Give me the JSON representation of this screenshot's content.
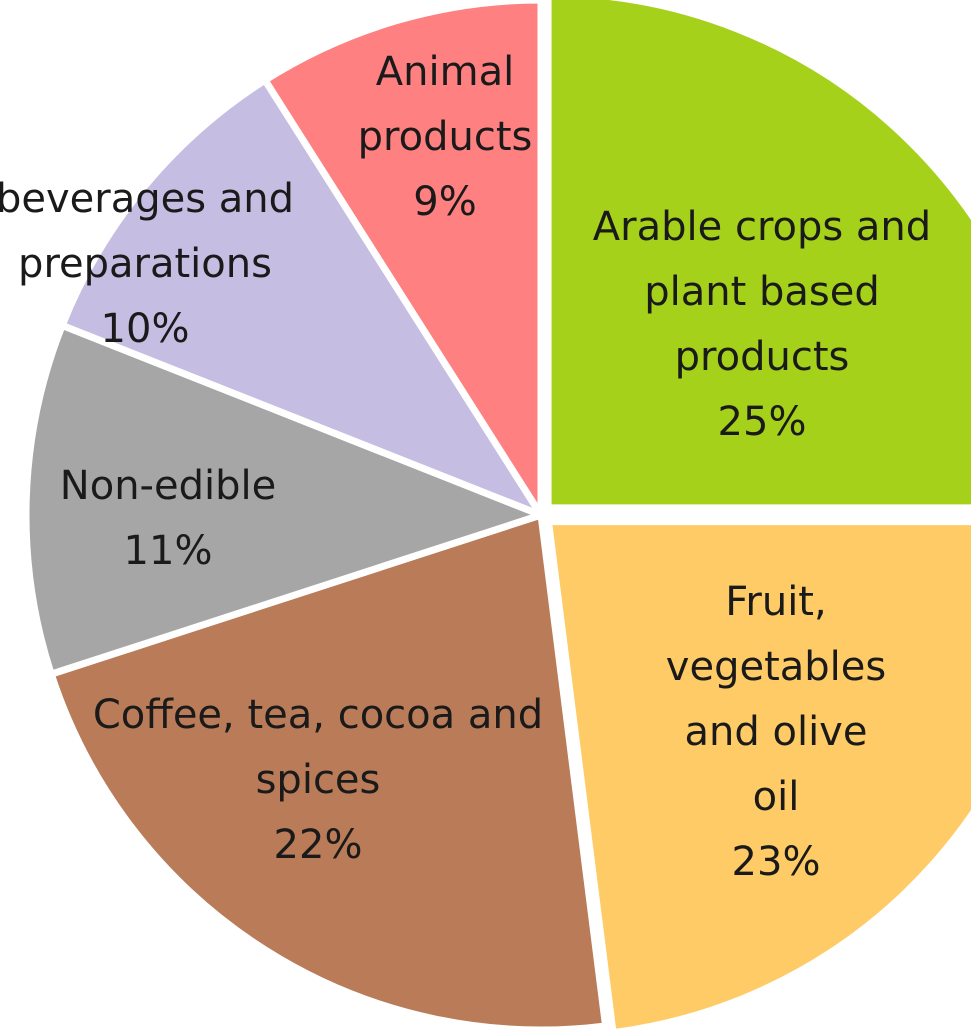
{
  "chart_data": {
    "type": "pie",
    "slices": [
      {
        "label_lines": [
          "Arable crops and",
          "plant based",
          "products",
          "25%"
        ],
        "category": "Arable crops and plant based products",
        "value": 25,
        "color": "#a5d11a"
      },
      {
        "label_lines": [
          "Fruit,",
          "vegetables",
          "and olive",
          "oil",
          "23%"
        ],
        "category": "Fruit, vegetables and olive oil",
        "value": 23,
        "color": "#fecb66"
      },
      {
        "label_lines": [
          "Coffee, tea, cocoa and",
          "spices",
          "22%"
        ],
        "category": "Coffee, tea, cocoa and spices",
        "value": 22,
        "color": "#b97b58"
      },
      {
        "label_lines": [
          "Non-edible",
          "11%"
        ],
        "category": "Non-edible",
        "value": 11,
        "color": "#a6a6a6"
      },
      {
        "label_lines": [
          "beverages and",
          "preparations",
          "10%"
        ],
        "category": "beverages and preparations",
        "value": 10,
        "color": "#c6bde3"
      },
      {
        "label_lines": [
          "Animal",
          "products",
          "9%"
        ],
        "category": "Animal products",
        "value": 9,
        "color": "#fe8080"
      }
    ]
  }
}
